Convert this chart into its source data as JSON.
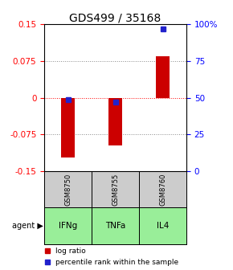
{
  "title": "GDS499 / 35168",
  "categories": [
    "IFNg",
    "TNFa",
    "IL4"
  ],
  "sample_ids": [
    "GSM8750",
    "GSM8755",
    "GSM8760"
  ],
  "log_ratios": [
    -0.122,
    -0.098,
    0.085
  ],
  "percentile_ranks": [
    48.5,
    47.0,
    97.0
  ],
  "ylim_left": [
    -0.15,
    0.15
  ],
  "ylim_right": [
    0,
    100
  ],
  "yticks_left": [
    -0.15,
    -0.075,
    0,
    0.075,
    0.15
  ],
  "yticks_right": [
    0,
    25,
    50,
    75,
    100
  ],
  "ytick_labels_left": [
    "-0.15",
    "-0.075",
    "0",
    "0.075",
    "0.15"
  ],
  "ytick_labels_right": [
    "0",
    "25",
    "50",
    "75",
    "100%"
  ],
  "bar_color": "#cc0000",
  "dot_color": "#2222cc",
  "box_color_gsm": "#cccccc",
  "box_color_agent": "#99ee99",
  "agent_label": "agent",
  "legend_items": [
    "log ratio",
    "percentile rank within the sample"
  ],
  "title_fontsize": 10,
  "tick_fontsize": 7.5,
  "label_fontsize": 7
}
